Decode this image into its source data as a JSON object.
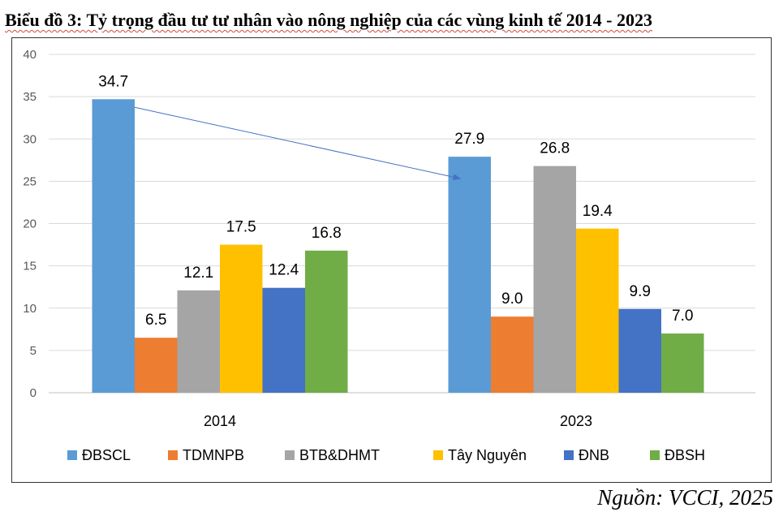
{
  "title": "Biểu đồ 3: Tỷ trọng đầu tư tư nhân vào nông nghiệp của các vùng kinh tế 2014 - 2023",
  "source": "Nguồn: VCCI, 2025",
  "chart_data": {
    "type": "bar",
    "categories": [
      "2014",
      "2023"
    ],
    "series": [
      {
        "name": "ĐBSCL",
        "color": "#5B9BD5",
        "values": [
          34.7,
          27.9
        ]
      },
      {
        "name": "TDMNPB",
        "color": "#ED7D31",
        "values": [
          6.5,
          9.0
        ]
      },
      {
        "name": "BTB&DHMT",
        "color": "#A5A5A5",
        "values": [
          12.1,
          26.8
        ]
      },
      {
        "name": "Tây Nguyên",
        "color": "#FFC000",
        "values": [
          17.5,
          19.4
        ]
      },
      {
        "name": "ĐNB",
        "color": "#4472C4",
        "values": [
          12.4,
          9.9
        ]
      },
      {
        "name": "ĐBSH",
        "color": "#70AD47",
        "values": [
          16.8,
          7.0
        ]
      }
    ],
    "value_labels": [
      [
        "34.7",
        "27.9"
      ],
      [
        "6.5",
        "9.0"
      ],
      [
        "12.1",
        "26.8"
      ],
      [
        "17.5",
        "19.4"
      ],
      [
        "12.4",
        "9.9"
      ],
      [
        "16.8",
        "7.0"
      ]
    ],
    "yticks": [
      0,
      5,
      10,
      15,
      20,
      25,
      30,
      35,
      40
    ],
    "ylim": [
      0,
      40
    ],
    "grid": true,
    "legend": "bottom",
    "arrow": {
      "from": {
        "series": "ĐBSCL",
        "category": "2014"
      },
      "to": {
        "series": "ĐBSCL",
        "category": "2023"
      },
      "color": "#4472C4"
    }
  }
}
